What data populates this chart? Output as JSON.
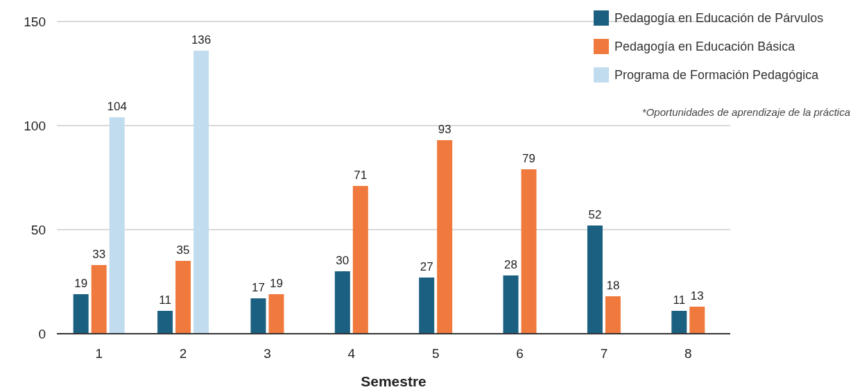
{
  "chart_data": {
    "type": "bar",
    "xlabel": "Semestre",
    "categories": [
      "1",
      "2",
      "3",
      "4",
      "5",
      "6",
      "7",
      "8"
    ],
    "series": [
      {
        "name": "Pedagogía en Educación de Párvulos",
        "color": "#1b6080",
        "values": [
          19,
          11,
          17,
          30,
          27,
          28,
          52,
          11
        ]
      },
      {
        "name": "Pedagogía en Educación Básica",
        "color": "#f07a3e",
        "values": [
          33,
          35,
          19,
          71,
          93,
          79,
          18,
          13
        ]
      },
      {
        "name": "Programa de Formación Pedagógica",
        "color": "#c2dcef",
        "values": [
          104,
          136,
          null,
          null,
          null,
          null,
          null,
          null
        ]
      }
    ],
    "ylim": [
      0,
      150
    ],
    "yticks": [
      0,
      50,
      100,
      150
    ],
    "grid": "y",
    "legend": "top right",
    "data_labels": true,
    "annotations": [
      "*Oportunidades de aprendizaje de la práctica"
    ]
  }
}
